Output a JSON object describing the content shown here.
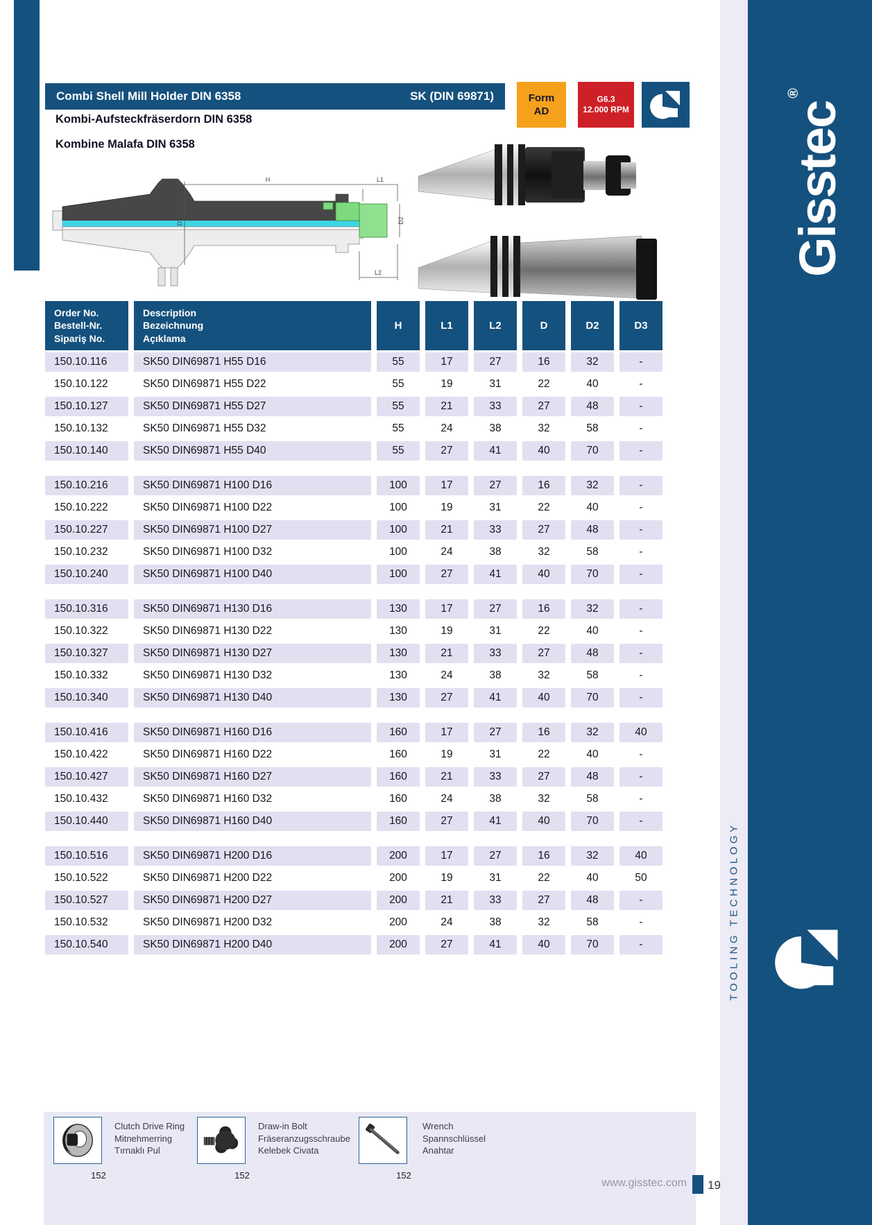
{
  "header": {
    "title": "Combi Shell Mill Holder DIN 6358",
    "taper": "SK (DIN 69871)",
    "form_badge": [
      "Form",
      "AD"
    ],
    "speed_badge": [
      "G6.3",
      "12.000 RPM"
    ],
    "subtitle_de": "Kombi-Aufsteckfräserdorn DIN 6358",
    "subtitle_tr": "Kombine Malafa DIN 6358"
  },
  "brand": {
    "name": "Gisstec",
    "registered": "®",
    "tagline": "TOOLING TECHNOLOGY"
  },
  "drawing": {
    "labels": {
      "h": "H",
      "l1": "L1",
      "l2": "L2",
      "d1": "D1",
      "d2": "D2"
    }
  },
  "table": {
    "headers": {
      "col1": [
        "Order No.",
        "Bestell-Nr.",
        "Sipariş No."
      ],
      "col2": [
        "Description",
        "Bezeichnung",
        "Açıklama"
      ],
      "dims": [
        "H",
        "L1",
        "L2",
        "D",
        "D2",
        "D3"
      ]
    },
    "groups": [
      {
        "rows": [
          {
            "order": "150.10.116",
            "desc": "SK50 DIN69871 H55 D16",
            "values": [
              "55",
              "17",
              "27",
              "16",
              "32",
              "-"
            ]
          },
          {
            "order": "150.10.122",
            "desc": "SK50 DIN69871 H55 D22",
            "values": [
              "55",
              "19",
              "31",
              "22",
              "40",
              "-"
            ]
          },
          {
            "order": "150.10.127",
            "desc": "SK50 DIN69871 H55 D27",
            "values": [
              "55",
              "21",
              "33",
              "27",
              "48",
              "-"
            ]
          },
          {
            "order": "150.10.132",
            "desc": "SK50 DIN69871 H55 D32",
            "values": [
              "55",
              "24",
              "38",
              "32",
              "58",
              "-"
            ]
          },
          {
            "order": "150.10.140",
            "desc": "SK50 DIN69871 H55 D40",
            "values": [
              "55",
              "27",
              "41",
              "40",
              "70",
              "-"
            ]
          }
        ]
      },
      {
        "rows": [
          {
            "order": "150.10.216",
            "desc": "SK50 DIN69871 H100 D16",
            "values": [
              "100",
              "17",
              "27",
              "16",
              "32",
              "-"
            ]
          },
          {
            "order": "150.10.222",
            "desc": "SK50 DIN69871 H100 D22",
            "values": [
              "100",
              "19",
              "31",
              "22",
              "40",
              "-"
            ]
          },
          {
            "order": "150.10.227",
            "desc": "SK50 DIN69871 H100 D27",
            "values": [
              "100",
              "21",
              "33",
              "27",
              "48",
              "-"
            ]
          },
          {
            "order": "150.10.232",
            "desc": "SK50 DIN69871 H100 D32",
            "values": [
              "100",
              "24",
              "38",
              "32",
              "58",
              "-"
            ]
          },
          {
            "order": "150.10.240",
            "desc": "SK50 DIN69871 H100 D40",
            "values": [
              "100",
              "27",
              "41",
              "40",
              "70",
              "-"
            ]
          }
        ]
      },
      {
        "rows": [
          {
            "order": "150.10.316",
            "desc": "SK50 DIN69871 H130 D16",
            "values": [
              "130",
              "17",
              "27",
              "16",
              "32",
              "-"
            ]
          },
          {
            "order": "150.10.322",
            "desc": "SK50 DIN69871 H130 D22",
            "values": [
              "130",
              "19",
              "31",
              "22",
              "40",
              "-"
            ]
          },
          {
            "order": "150.10.327",
            "desc": "SK50 DIN69871 H130 D27",
            "values": [
              "130",
              "21",
              "33",
              "27",
              "48",
              "-"
            ]
          },
          {
            "order": "150.10.332",
            "desc": "SK50 DIN69871 H130 D32",
            "values": [
              "130",
              "24",
              "38",
              "32",
              "58",
              "-"
            ]
          },
          {
            "order": "150.10.340",
            "desc": "SK50 DIN69871 H130 D40",
            "values": [
              "130",
              "27",
              "41",
              "40",
              "70",
              "-"
            ]
          }
        ]
      },
      {
        "rows": [
          {
            "order": "150.10.416",
            "desc": "SK50 DIN69871 H160 D16",
            "values": [
              "160",
              "17",
              "27",
              "16",
              "32",
              "40"
            ]
          },
          {
            "order": "150.10.422",
            "desc": "SK50 DIN69871 H160 D22",
            "values": [
              "160",
              "19",
              "31",
              "22",
              "40",
              "-"
            ]
          },
          {
            "order": "150.10.427",
            "desc": "SK50 DIN69871 H160 D27",
            "values": [
              "160",
              "21",
              "33",
              "27",
              "48",
              "-"
            ]
          },
          {
            "order": "150.10.432",
            "desc": "SK50 DIN69871 H160 D32",
            "values": [
              "160",
              "24",
              "38",
              "32",
              "58",
              "-"
            ]
          },
          {
            "order": "150.10.440",
            "desc": "SK50 DIN69871 H160 D40",
            "values": [
              "160",
              "27",
              "41",
              "40",
              "70",
              "-"
            ]
          }
        ]
      },
      {
        "rows": [
          {
            "order": "150.10.516",
            "desc": "SK50 DIN69871 H200 D16",
            "values": [
              "200",
              "17",
              "27",
              "16",
              "32",
              "40"
            ]
          },
          {
            "order": "150.10.522",
            "desc": "SK50 DIN69871 H200 D22",
            "values": [
              "200",
              "19",
              "31",
              "22",
              "40",
              "50"
            ]
          },
          {
            "order": "150.10.527",
            "desc": "SK50 DIN69871 H200 D27",
            "values": [
              "200",
              "21",
              "33",
              "27",
              "48",
              "-"
            ]
          },
          {
            "order": "150.10.532",
            "desc": "SK50 DIN69871 H200 D32",
            "values": [
              "200",
              "24",
              "38",
              "32",
              "58",
              "-"
            ]
          },
          {
            "order": "150.10.540",
            "desc": "SK50 DIN69871 H200 D40",
            "values": [
              "200",
              "27",
              "41",
              "40",
              "70",
              "-"
            ]
          }
        ]
      }
    ]
  },
  "accessories": {
    "items": [
      {
        "icon": "clutch-ring-icon",
        "lines": [
          "Clutch Drive Ring",
          "Mitnehmerring",
          "Tırnaklı Pul"
        ],
        "page": "152"
      },
      {
        "icon": "draw-in-bolt-icon",
        "lines": [
          "Draw-in Bolt",
          "Fräseranzugsschraube",
          "Kelebek Civata"
        ],
        "page": "152"
      },
      {
        "icon": "wrench-icon",
        "lines": [
          "Wrench",
          "Spannschlüssel",
          "Anahtar"
        ],
        "page": "152"
      }
    ]
  },
  "footer": {
    "website": "www.gisstec.com",
    "page": "19"
  },
  "colors": {
    "accent_blue": "#15517e",
    "badge_orange": "#f5a11c",
    "badge_red": "#ce2027",
    "row_lavender": "#e0e0f1",
    "band_lavender": "#e9e8f5",
    "drawing_cyan": "#3fd4e4",
    "drawing_green": "#7fd97f"
  }
}
